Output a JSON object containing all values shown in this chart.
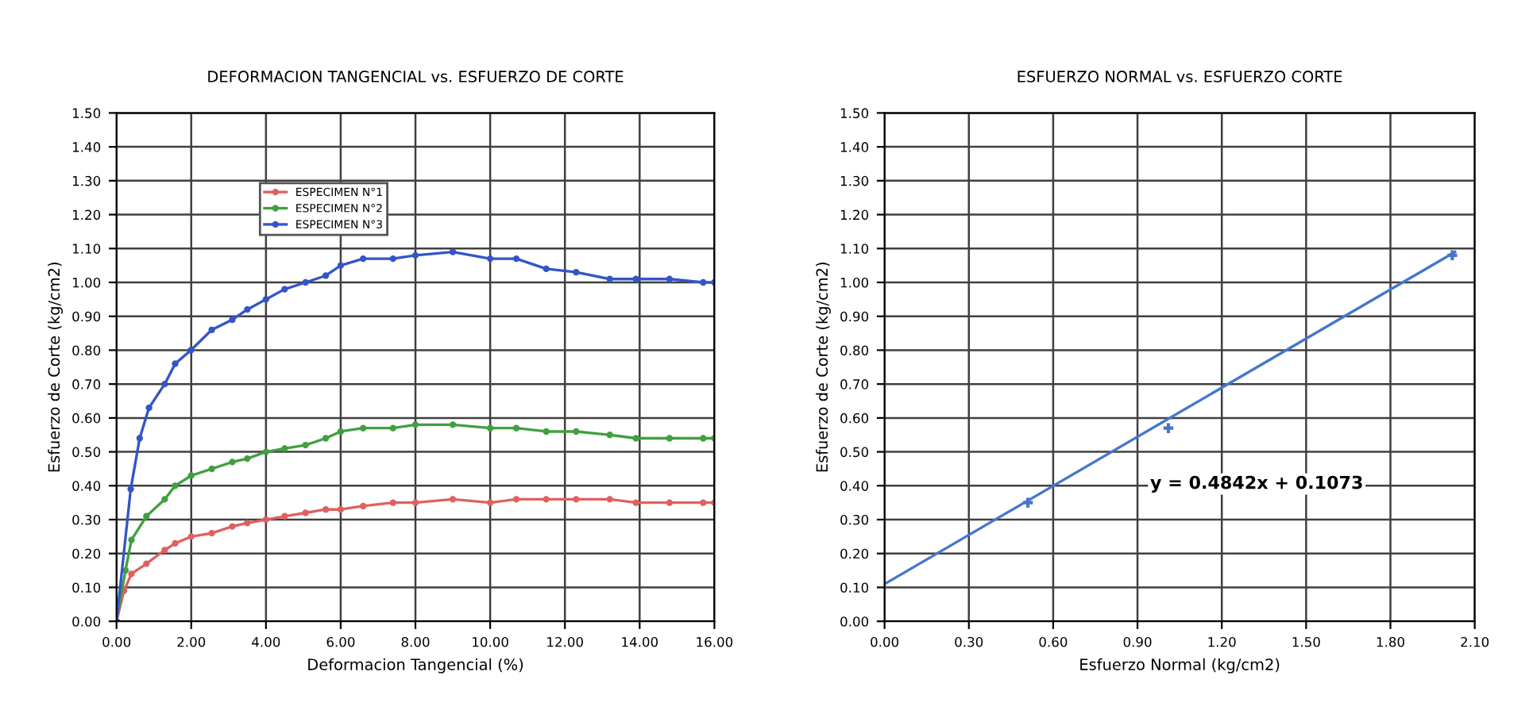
{
  "chart_data": [
    {
      "type": "line",
      "title": "DEFORMACION TANGENCIAL vs. ESFUERZO DE CORTE",
      "xlabel": "Deformacion Tangencial (%)",
      "ylabel": "Esfuerzo de Corte (kg/cm2)",
      "xlim": [
        0,
        16
      ],
      "ylim": [
        0,
        1.5
      ],
      "xticks": [
        {
          "value": 0,
          "label": "0.00"
        },
        {
          "value": 2,
          "label": "2.00"
        },
        {
          "value": 4,
          "label": "4.00"
        },
        {
          "value": 6,
          "label": "6.00"
        },
        {
          "value": 8,
          "label": "8.00"
        },
        {
          "value": 10,
          "label": "10.00"
        },
        {
          "value": 12,
          "label": "12.00"
        },
        {
          "value": 14,
          "label": "14.00"
        },
        {
          "value": 16,
          "label": "16.00"
        }
      ],
      "yticks": [
        {
          "value": 0,
          "label": "0.00"
        },
        {
          "value": 0.1,
          "label": "0.10"
        },
        {
          "value": 0.2,
          "label": "0.20"
        },
        {
          "value": 0.3,
          "label": "0.30"
        },
        {
          "value": 0.4,
          "label": "0.40"
        },
        {
          "value": 0.5,
          "label": "0.50"
        },
        {
          "value": 0.6,
          "label": "0.60"
        },
        {
          "value": 0.7,
          "label": "0.70"
        },
        {
          "value": 0.8,
          "label": "0.80"
        },
        {
          "value": 0.9,
          "label": "0.90"
        },
        {
          "value": 1.0,
          "label": "1.00"
        },
        {
          "value": 1.1,
          "label": "1.10"
        },
        {
          "value": 1.2,
          "label": "1.20"
        },
        {
          "value": 1.3,
          "label": "1.30"
        },
        {
          "value": 1.4,
          "label": "1.40"
        },
        {
          "value": 1.5,
          "label": "1.50"
        }
      ],
      "grid": true,
      "legend": "top",
      "marker": "circle",
      "line_style": "solid",
      "series": [
        {
          "name": "ESPECIMEN N°1",
          "color": "#e06060",
          "x": [
            0,
            0.2,
            0.4,
            0.8,
            1.29,
            1.57,
            2.0,
            2.55,
            3.1,
            3.5,
            4.0,
            4.5,
            5.06,
            5.6,
            6.0,
            6.6,
            7.4,
            8.0,
            9.0,
            10.0,
            10.7,
            11.5,
            12.3,
            13.2,
            13.9,
            14.8,
            15.7,
            16
          ],
          "values": [
            0,
            0.09,
            0.14,
            0.17,
            0.21,
            0.23,
            0.25,
            0.26,
            0.28,
            0.29,
            0.3,
            0.31,
            0.32,
            0.33,
            0.33,
            0.34,
            0.35,
            0.35,
            0.36,
            0.35,
            0.36,
            0.36,
            0.36,
            0.36,
            0.35,
            0.35,
            0.35,
            0.35
          ]
        },
        {
          "name": "ESPECIMEN N°2",
          "color": "#40a040",
          "x": [
            0,
            0.24,
            0.4,
            0.8,
            1.29,
            1.57,
            2.0,
            2.55,
            3.1,
            3.5,
            4.0,
            4.5,
            5.06,
            5.6,
            6.0,
            6.6,
            7.4,
            8.0,
            9.0,
            10.0,
            10.7,
            11.5,
            12.3,
            13.2,
            13.9,
            14.8,
            15.7,
            16
          ],
          "values": [
            0,
            0.15,
            0.24,
            0.31,
            0.36,
            0.4,
            0.43,
            0.45,
            0.47,
            0.48,
            0.5,
            0.51,
            0.52,
            0.54,
            0.56,
            0.57,
            0.57,
            0.58,
            0.58,
            0.57,
            0.57,
            0.56,
            0.56,
            0.55,
            0.54,
            0.54,
            0.54,
            0.54
          ]
        },
        {
          "name": "ESPECIMEN N°3",
          "color": "#3355c8",
          "x": [
            0,
            0.38,
            0.62,
            0.87,
            1.29,
            1.57,
            1.99,
            2.55,
            3.1,
            3.5,
            4.0,
            4.5,
            5.06,
            5.6,
            6.0,
            6.6,
            7.4,
            8.0,
            9.0,
            10.0,
            10.7,
            11.5,
            12.3,
            13.2,
            13.9,
            14.8,
            15.7,
            16
          ],
          "values": [
            0,
            0.39,
            0.54,
            0.63,
            0.7,
            0.76,
            0.8,
            0.86,
            0.89,
            0.92,
            0.95,
            0.98,
            1.0,
            1.02,
            1.05,
            1.07,
            1.07,
            1.08,
            1.09,
            1.07,
            1.07,
            1.04,
            1.03,
            1.01,
            1.01,
            1.01,
            1.0,
            1.0
          ]
        }
      ]
    },
    {
      "type": "scatter",
      "title": "ESFUERZO NORMAL vs. ESFUERZO CORTE",
      "xlabel": "Esfuerzo Normal (kg/cm2)",
      "ylabel": "Esfuerzo de Corte (kg/cm2)",
      "xlim": [
        0,
        2.1
      ],
      "ylim": [
        0,
        1.5
      ],
      "xticks": [
        {
          "value": 0,
          "label": "0.00"
        },
        {
          "value": 0.3,
          "label": "0.30"
        },
        {
          "value": 0.6,
          "label": "0.60"
        },
        {
          "value": 0.9,
          "label": "0.90"
        },
        {
          "value": 1.2,
          "label": "1.20"
        },
        {
          "value": 1.5,
          "label": "1.50"
        },
        {
          "value": 1.8,
          "label": "1.80"
        },
        {
          "value": 2.1,
          "label": "2.10"
        }
      ],
      "yticks": [
        {
          "value": 0,
          "label": "0.00"
        },
        {
          "value": 0.1,
          "label": "0.10"
        },
        {
          "value": 0.2,
          "label": "0.20"
        },
        {
          "value": 0.3,
          "label": "0.30"
        },
        {
          "value": 0.4,
          "label": "0.40"
        },
        {
          "value": 0.5,
          "label": "0.50"
        },
        {
          "value": 0.6,
          "label": "0.60"
        },
        {
          "value": 0.7,
          "label": "0.70"
        },
        {
          "value": 0.8,
          "label": "0.80"
        },
        {
          "value": 0.9,
          "label": "0.90"
        },
        {
          "value": 1.0,
          "label": "1.00"
        },
        {
          "value": 1.1,
          "label": "1.10"
        },
        {
          "value": 1.2,
          "label": "1.20"
        },
        {
          "value": 1.3,
          "label": "1.30"
        },
        {
          "value": 1.4,
          "label": "1.40"
        },
        {
          "value": 1.5,
          "label": "1.50"
        }
      ],
      "grid": true,
      "annotations": [
        "y = 0.4842x + 0.1073"
      ],
      "series": [
        {
          "marker": "cross",
          "color": "#4477cc",
          "x": [
            0.51,
            1.01,
            2.02
          ],
          "values": [
            0.35,
            0.57,
            1.08
          ]
        },
        {
          "type": "line",
          "color": "#4477cc",
          "x": [
            0,
            2.03
          ],
          "values": [
            0.11,
            1.09
          ]
        }
      ]
    }
  ]
}
